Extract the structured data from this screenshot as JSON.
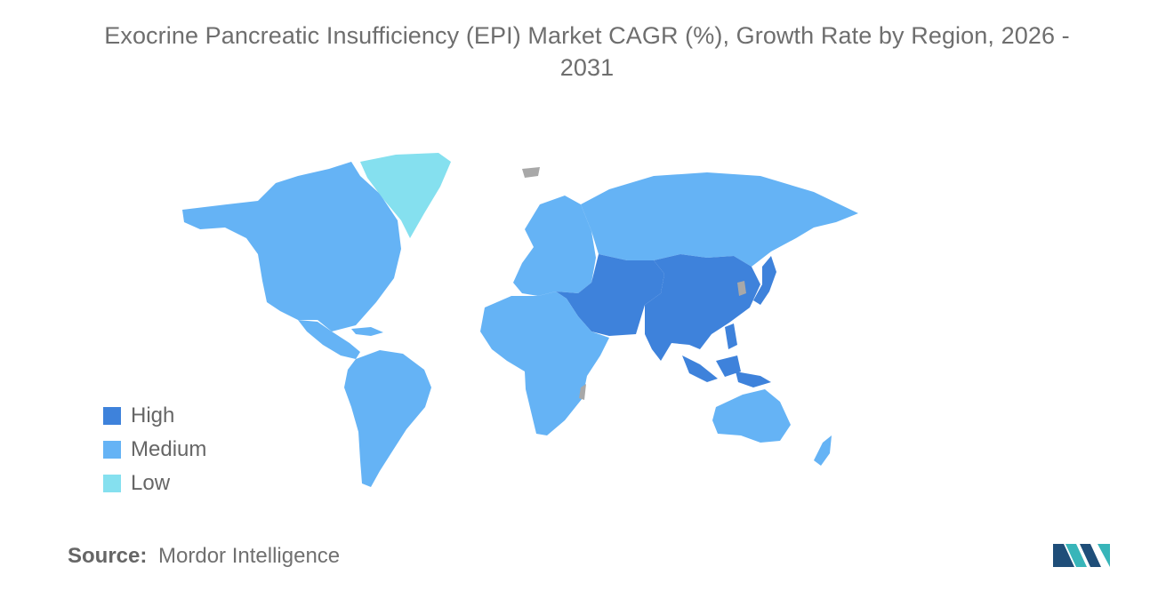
{
  "title": {
    "line1": "Exocrine Pancreatic Insufficiency (EPI) Market CAGR (%), Growth Rate by Region, 2026 -",
    "line2": "2031"
  },
  "legend": [
    {
      "label": "High",
      "color": "#3e82db"
    },
    {
      "label": "Medium",
      "color": "#65b3f5"
    },
    {
      "label": "Low",
      "color": "#85e0ef"
    }
  ],
  "map": {
    "regions": [
      {
        "name": "North America",
        "level": "Medium"
      },
      {
        "name": "Greenland",
        "level": "Low"
      },
      {
        "name": "South America",
        "level": "Medium"
      },
      {
        "name": "Europe",
        "level": "Medium"
      },
      {
        "name": "Russia",
        "level": "Medium"
      },
      {
        "name": "Africa",
        "level": "Medium"
      },
      {
        "name": "Middle East & Central Asia",
        "level": "High"
      },
      {
        "name": "South & East Asia",
        "level": "High"
      },
      {
        "name": "Southeast Asia",
        "level": "High"
      },
      {
        "name": "Australia & Oceania",
        "level": "Medium"
      }
    ],
    "no_data_color": "#a8a8a8"
  },
  "source": {
    "label": "Source:",
    "value": "Mordor Intelligence"
  },
  "logo": {
    "icon": "mordor-intelligence-logo",
    "colors": [
      "#1f4e79",
      "#38b5b9"
    ]
  }
}
